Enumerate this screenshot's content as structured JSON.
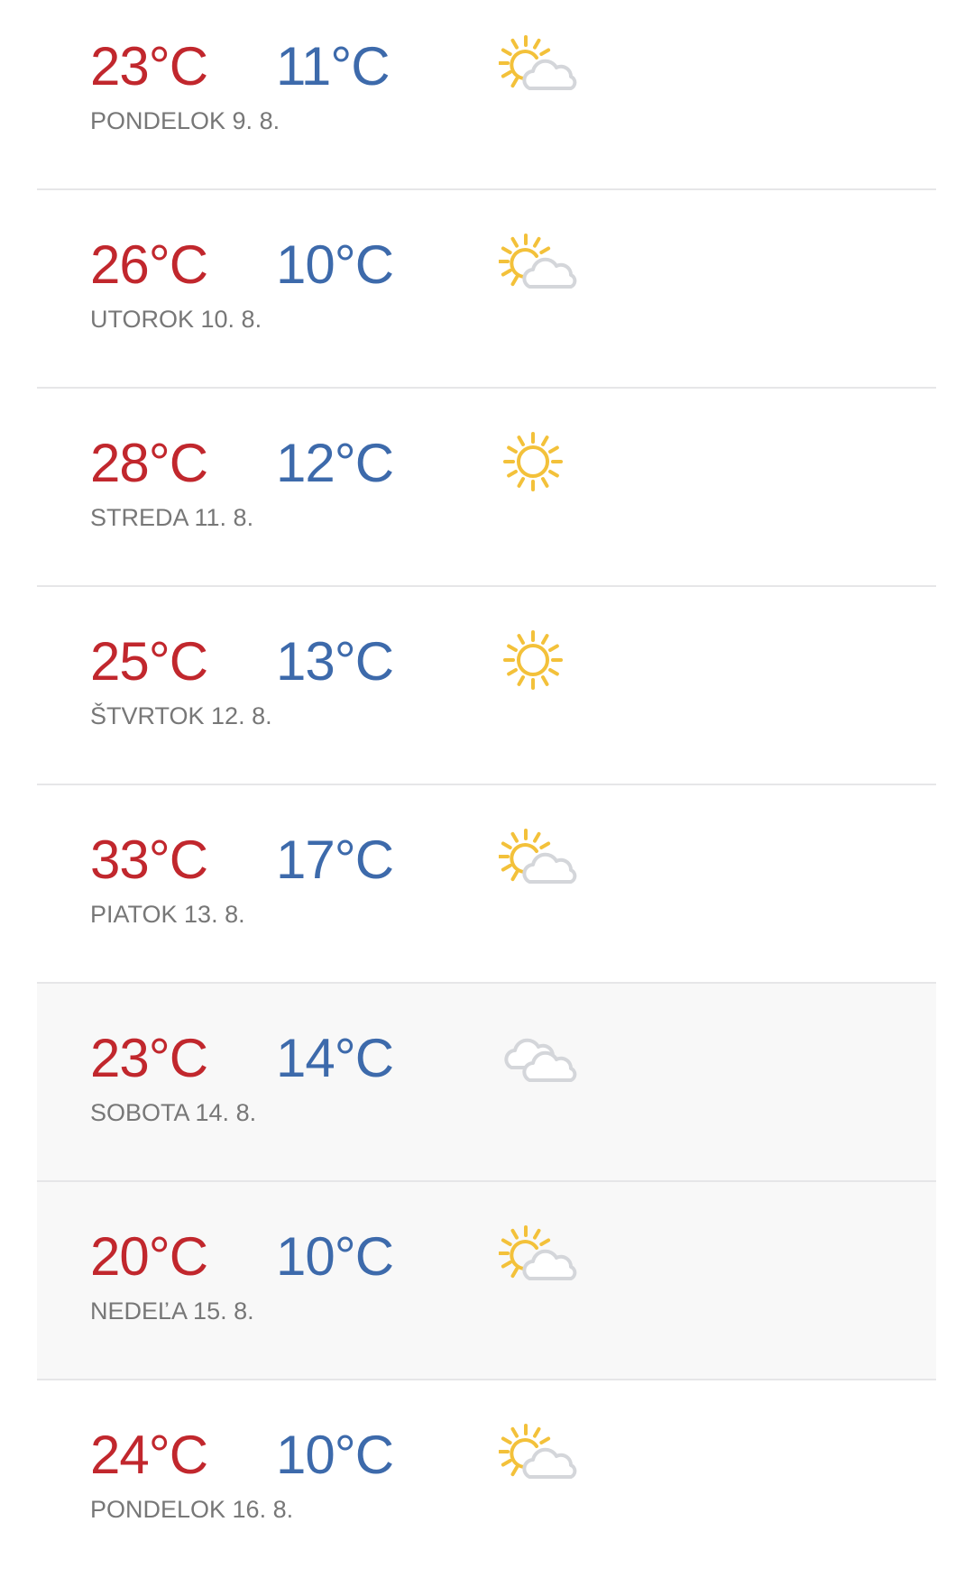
{
  "colors": {
    "high": "#c1272d",
    "low": "#3d6aab",
    "sun": "#f3c13a",
    "cloud": "#d4d6da",
    "weekend_bg": "#f8f8f8"
  },
  "forecast": [
    {
      "high": "23°C",
      "low": "11°C",
      "date": "PONDELOK 9. 8.",
      "icon": "partly-cloudy",
      "weekend": false
    },
    {
      "high": "26°C",
      "low": "10°C",
      "date": "UTOROK 10. 8.",
      "icon": "partly-cloudy",
      "weekend": false
    },
    {
      "high": "28°C",
      "low": "12°C",
      "date": "STREDA 11. 8.",
      "icon": "sunny",
      "weekend": false
    },
    {
      "high": "25°C",
      "low": "13°C",
      "date": "ŠTVRTOK 12. 8.",
      "icon": "sunny",
      "weekend": false
    },
    {
      "high": "33°C",
      "low": "17°C",
      "date": "PIATOK 13. 8.",
      "icon": "partly-cloudy",
      "weekend": false
    },
    {
      "high": "23°C",
      "low": "14°C",
      "date": "SOBOTA 14. 8.",
      "icon": "cloudy",
      "weekend": true
    },
    {
      "high": "20°C",
      "low": "10°C",
      "date": "NEDEĽA 15. 8.",
      "icon": "partly-cloudy",
      "weekend": true
    },
    {
      "high": "24°C",
      "low": "10°C",
      "date": "PONDELOK 16. 8.",
      "icon": "partly-cloudy",
      "weekend": false
    }
  ]
}
